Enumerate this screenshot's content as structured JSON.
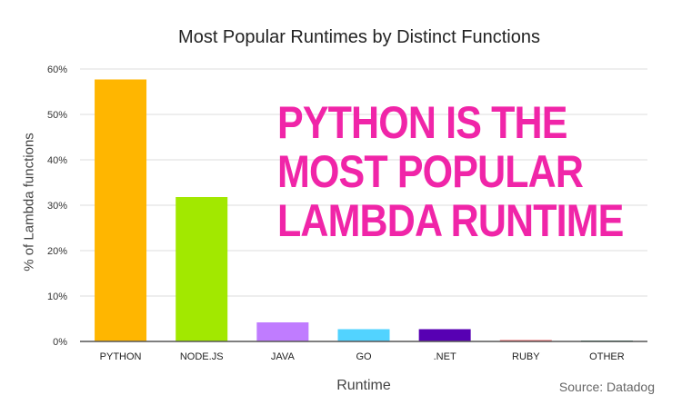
{
  "chart_data": {
    "type": "bar",
    "title": "Most Popular Runtimes by Distinct Functions",
    "xlabel": "Runtime",
    "ylabel": "% of Lambda functions",
    "ylim": [
      0,
      60
    ],
    "yticks": [
      "0%",
      "10%",
      "20%",
      "30%",
      "40%",
      "50%",
      "60%"
    ],
    "grid": true,
    "categories": [
      "PYTHON",
      "NODE.JS",
      "JAVA",
      "GO",
      ".NET",
      "RUBY",
      "OTHER"
    ],
    "values": [
      57.7,
      31.8,
      4.2,
      2.7,
      2.7,
      0.3,
      0.2
    ],
    "colors": [
      "#ffb600",
      "#a2e800",
      "#c07cff",
      "#52d3ff",
      "#5700b3",
      "#f0595c",
      "#1f6b4f"
    ],
    "annotation": [
      "PYTHON IS THE",
      "MOST POPULAR",
      "LAMBDA RUNTIME"
    ],
    "annotation_color": "#f025a8",
    "source": "Source: Datadog"
  }
}
